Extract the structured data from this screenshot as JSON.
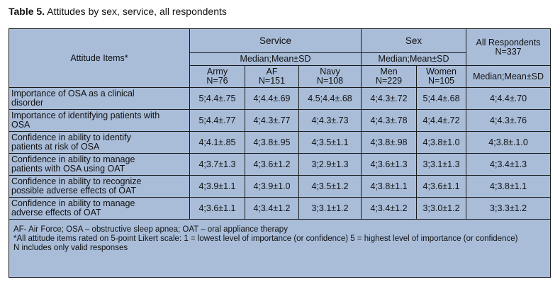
{
  "caption": {
    "label": "Table 5.",
    "text": " Attitudes by sex, service, all respondents"
  },
  "header": {
    "attitude_items": "Attitude Items*",
    "service": "Service",
    "sex": "Sex",
    "all_respondents": "All Respondents",
    "all_n": "N=337",
    "service_stat": "Median;Mean±SD",
    "sex_stat": "Median;Mean±SD",
    "all_stat": "Median;Mean±SD",
    "army": "Army",
    "army_n": "N=76",
    "af": "AF",
    "af_n": "N=151",
    "navy": "Navy",
    "navy_n": "N=108",
    "men": "Men",
    "men_n": "N=229",
    "women": "Women",
    "women_n": "N=105"
  },
  "rows": [
    {
      "item_l1": "Importance of OSA as a clinical",
      "item_l2": "disorder",
      "army": "5;4.4±.75",
      "af": "4;4.4±.69",
      "navy": "4.5;4.4±.68",
      "men": "4;4.3±.72",
      "women": "5;4.4±.68",
      "all": "4;4.4±.70"
    },
    {
      "item_l1": "Importance of identifying patients with",
      "item_l2": "OSA",
      "army": "5;4.4±.77",
      "af": "4;4.3±.77",
      "navy": "4;4.3±.73",
      "men": "4;4.3±.78",
      "women": "4;4.4±.72",
      "all": "4;4.3±.76"
    },
    {
      "item_l1": "Confidence in ability to identify",
      "item_l2": "patients at risk of OSA",
      "army": "4;4.1±.85",
      "af": "4;3.8±.95",
      "navy": "4;3.5±1.1",
      "men": "4;3.8±.98",
      "women": "4;3.8±1.0",
      "all": "4;3.8±.1.0"
    },
    {
      "item_l1": "Confidence in ability to manage",
      "item_l2": "patients with OSA using OAT",
      "army": "4;3.7±1.3",
      "af": "4;3.6±1.2",
      "navy": "3;2.9±1.3",
      "men": "4;3.6±1.3",
      "women": "3;3.1±1.3",
      "all": "4;3.4±1.3"
    },
    {
      "item_l1": "Confidence in ability to recognize",
      "item_l2": "possible adverse effects of OAT",
      "army": "4;3.9±1.1",
      "af": "4;3.9±1.0",
      "navy": "4;3.5±1.2",
      "men": "4;3.8±1.1",
      "women": "4;3.6±1.1",
      "all": "4;3.8±1.1"
    },
    {
      "item_l1": "Confidence in ability to manage",
      "item_l2": "adverse effects of OAT",
      "army": "4;3.6±1.1",
      "af": "4;3.4±1.2",
      "navy": "3;3.1±1.2",
      "men": "4;3.4±1.2",
      "women": "3;3.0±1.2",
      "all": "3;3.3±1.2"
    }
  ],
  "notes": {
    "line1": "AF- Air Force; OSA – obstructive sleep apnea; OAT – oral appliance therapy",
    "line2": "*All attitude items rated on 5-point Likert scale: 1 = lowest level of importance (or confidence) 5 = highest level of importance (or confidence)",
    "line3": "N includes only valid responses"
  }
}
